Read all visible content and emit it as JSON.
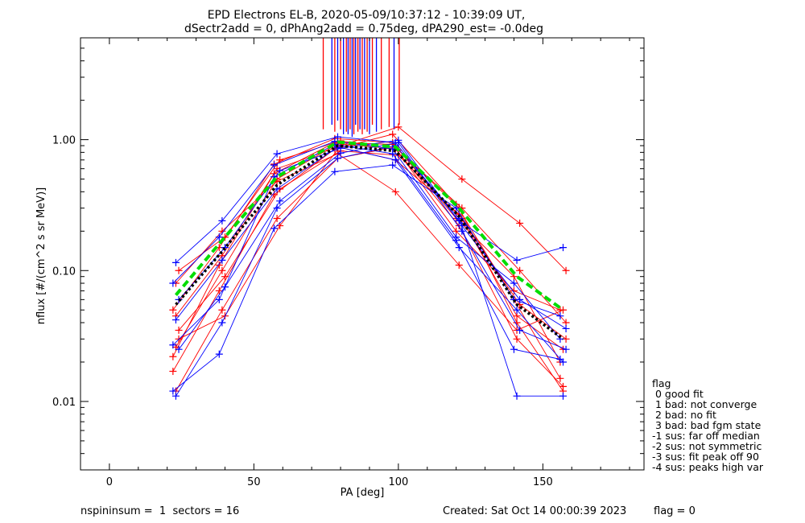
{
  "title_lines": [
    "EPD Electrons EL-B, 2020-05-09/10:37:12 - 10:39:09 UT,",
    "dSectr2add = 0, dPhAng2add = 0.75deg, dPA290_est=  -0.0deg"
  ],
  "footer": {
    "left": "nspininsum =  1  sectors = 16",
    "center": "Created: Sat Oct 14 00:00:39 2023",
    "right": "flag = 0"
  },
  "flag_legend": {
    "title": "flag",
    "items": [
      " 0 good fit",
      " 1 bad: not converge",
      " 2 bad: no fit",
      " 3 bad: bad fgm state",
      "-1 sus: far off median",
      "-2 sus: not symmetric",
      "-3 sus: fit peak off 90",
      "-4 sus: peaks high var"
    ]
  },
  "colors": {
    "red": "#ff0000",
    "blue": "#0000ff",
    "green": "#00dd00",
    "black": "#000000",
    "median_line": "#000000",
    "fit_line": "#00dd00"
  },
  "chart_data": {
    "type": "line",
    "xlabel": "PA [deg]",
    "ylabel": "nflux [#/(cm^2 s sr MeV)]",
    "xlim": [
      -10,
      185
    ],
    "ylim": [
      0.003,
      6.0
    ],
    "yscale": "log",
    "xticks": [
      0,
      50,
      100,
      150
    ],
    "xtick_labels": [
      "0",
      "50",
      "100",
      "150"
    ],
    "yticks": [
      0.01,
      0.1,
      1.0
    ],
    "ytick_labels": [
      "0.01",
      "0.10",
      "1.00"
    ],
    "marker": "+",
    "series": [
      {
        "color": "red",
        "x": [
          23,
          39,
          58,
          79,
          99,
          121,
          141,
          157
        ],
        "y": [
          0.012,
          0.05,
          0.25,
          0.72,
          0.88,
          0.3,
          0.04,
          0.012
        ]
      },
      {
        "color": "red",
        "x": [
          24,
          40,
          59,
          80,
          100,
          122,
          142,
          158
        ],
        "y": [
          0.035,
          0.09,
          0.42,
          0.82,
          0.76,
          0.25,
          0.055,
          0.03
        ]
      },
      {
        "color": "red",
        "x": [
          22,
          38,
          57,
          78,
          98,
          120,
          140,
          156
        ],
        "y": [
          0.022,
          0.11,
          0.55,
          0.95,
          0.92,
          0.2,
          0.07,
          0.05
        ]
      },
      {
        "color": "red",
        "x": [
          23,
          39,
          58,
          79,
          99,
          121,
          141,
          157
        ],
        "y": [
          0.045,
          0.13,
          0.6,
          0.88,
          0.7,
          0.27,
          0.045,
          0.025
        ]
      },
      {
        "color": "red",
        "x": [
          24,
          40,
          59,
          80,
          100,
          122,
          142,
          158
        ],
        "y": [
          0.1,
          0.18,
          0.7,
          0.98,
          0.83,
          0.3,
          0.1,
          0.04
        ]
      },
      {
        "color": "red",
        "x": [
          22,
          38,
          57,
          78,
          98,
          120,
          140,
          156
        ],
        "y": [
          0.017,
          0.07,
          0.38,
          0.85,
          1.1,
          0.32,
          0.06,
          0.015
        ]
      },
      {
        "color": "red",
        "x": [
          23,
          39,
          58,
          79,
          99,
          121,
          141,
          157
        ],
        "y": [
          0.08,
          0.2,
          0.48,
          0.78,
          0.4,
          0.11,
          0.035,
          0.05
        ]
      },
      {
        "color": "red",
        "x": [
          24,
          40,
          59,
          80,
          100,
          122,
          142,
          158
        ],
        "y": [
          0.03,
          0.045,
          0.22,
          0.9,
          1.25,
          0.5,
          0.23,
          0.1
        ]
      },
      {
        "color": "red",
        "x": [
          22,
          38,
          57,
          78,
          98,
          120,
          140,
          156
        ],
        "y": [
          0.05,
          0.15,
          0.65,
          1.02,
          0.95,
          0.25,
          0.09,
          0.02
        ]
      },
      {
        "color": "red",
        "x": [
          23,
          39,
          58,
          79,
          99,
          121,
          141,
          157
        ],
        "y": [
          0.026,
          0.1,
          0.5,
          0.93,
          0.85,
          0.22,
          0.03,
          0.013
        ]
      },
      {
        "color": "blue",
        "x": [
          23,
          39,
          58,
          79,
          99,
          121,
          141,
          157
        ],
        "y": [
          0.115,
          0.24,
          0.78,
          1.05,
          0.95,
          0.24,
          0.12,
          0.15
        ]
      },
      {
        "color": "blue",
        "x": [
          22,
          38,
          57,
          78,
          98,
          120,
          140,
          156
        ],
        "y": [
          0.08,
          0.18,
          0.64,
          0.97,
          0.85,
          0.18,
          0.08,
          0.03
        ]
      },
      {
        "color": "blue",
        "x": [
          23,
          39,
          58,
          79,
          99,
          121,
          141,
          157
        ],
        "y": [
          0.042,
          0.12,
          0.42,
          0.88,
          0.7,
          0.15,
          0.05,
          0.02
        ]
      },
      {
        "color": "blue",
        "x": [
          24,
          40,
          59,
          80,
          100,
          122,
          142,
          158
        ],
        "y": [
          0.025,
          0.075,
          0.34,
          0.79,
          0.95,
          0.2,
          0.035,
          0.025
        ]
      },
      {
        "color": "blue",
        "x": [
          22,
          38,
          57,
          78,
          98,
          120,
          140,
          156
        ],
        "y": [
          0.012,
          0.023,
          0.21,
          0.57,
          0.64,
          0.3,
          0.06,
          0.045
        ]
      },
      {
        "color": "blue",
        "x": [
          23,
          39,
          58,
          79,
          99,
          121,
          141,
          157
        ],
        "y": [
          0.011,
          0.04,
          0.3,
          0.72,
          0.9,
          0.25,
          0.011,
          0.011
        ]
      },
      {
        "color": "blue",
        "x": [
          22,
          38,
          57,
          78,
          98,
          120,
          140,
          156
        ],
        "y": [
          0.027,
          0.06,
          0.52,
          0.92,
          0.78,
          0.17,
          0.025,
          0.021
        ]
      },
      {
        "color": "blue",
        "x": [
          24,
          40,
          59,
          80,
          100,
          122,
          142,
          158
        ],
        "y": [
          0.06,
          0.15,
          0.58,
          0.86,
          0.99,
          0.22,
          0.06,
          0.036
        ]
      }
    ],
    "green_fit": {
      "x": [
        23,
        39,
        58,
        79,
        99,
        121,
        141,
        157
      ],
      "y": [
        0.065,
        0.17,
        0.52,
        0.96,
        0.88,
        0.3,
        0.09,
        0.05
      ]
    },
    "black_median": {
      "x": [
        23,
        39,
        58,
        79,
        99,
        121,
        141,
        157
      ],
      "y": [
        0.055,
        0.14,
        0.45,
        0.9,
        0.82,
        0.26,
        0.055,
        0.03
      ]
    },
    "vertical_lines": [
      {
        "x": 74,
        "y_from": 1.2,
        "color": "red"
      },
      {
        "x": 77,
        "y_from": 1.3,
        "color": "blue"
      },
      {
        "x": 78,
        "y_from": 1.15,
        "color": "red"
      },
      {
        "x": 79,
        "y_from": 1.4,
        "color": "blue"
      },
      {
        "x": 80,
        "y_from": 1.2,
        "color": "red"
      },
      {
        "x": 81,
        "y_from": 1.1,
        "color": "blue"
      },
      {
        "x": 82,
        "y_from": 1.15,
        "color": "red"
      },
      {
        "x": 82.6,
        "y_from": 1.1,
        "color": "blue"
      },
      {
        "x": 83.3,
        "y_from": 1.2,
        "color": "red"
      },
      {
        "x": 84,
        "y_from": 1.05,
        "color": "blue"
      },
      {
        "x": 84.6,
        "y_from": 1.1,
        "color": "red"
      },
      {
        "x": 85.2,
        "y_from": 1.3,
        "color": "blue"
      },
      {
        "x": 86,
        "y_from": 1.15,
        "color": "red"
      },
      {
        "x": 86.7,
        "y_from": 1.2,
        "color": "blue"
      },
      {
        "x": 87.5,
        "y_from": 1.1,
        "color": "red"
      },
      {
        "x": 88.3,
        "y_from": 1.2,
        "color": "blue"
      },
      {
        "x": 89.2,
        "y_from": 1.15,
        "color": "red"
      },
      {
        "x": 90,
        "y_from": 1.1,
        "color": "blue"
      },
      {
        "x": 91,
        "y_from": 1.3,
        "color": "red"
      },
      {
        "x": 92.4,
        "y_from": 1.15,
        "color": "blue"
      },
      {
        "x": 94.1,
        "y_from": 1.2,
        "color": "red"
      },
      {
        "x": 96.8,
        "y_from": 1.25,
        "color": "red"
      },
      {
        "x": 98.5,
        "y_from": 1.2,
        "color": "blue"
      },
      {
        "x": 100.3,
        "y_from": 1.3,
        "color": "red"
      }
    ]
  }
}
